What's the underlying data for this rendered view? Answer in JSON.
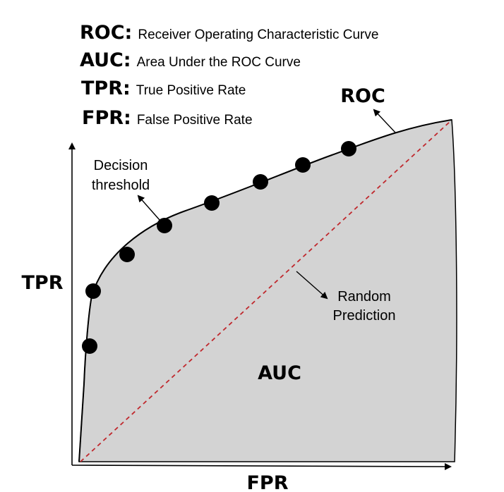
{
  "definitions": [
    {
      "term": "ROC:",
      "description": "Receiver Operating Characteristic Curve"
    },
    {
      "term": "AUC:",
      "description": "Area Under the ROC Curve"
    },
    {
      "term": "TPR:",
      "description": "True Positive Rate"
    },
    {
      "term": "FPR:",
      "description": "False Positive Rate"
    }
  ],
  "labels": {
    "roc": "ROC",
    "auc": "AUC",
    "tpr": "TPR",
    "fpr": "FPR",
    "decision_threshold": [
      "Decision",
      "threshold"
    ],
    "random_prediction": [
      "Random",
      "Prediction"
    ]
  },
  "colors": {
    "area_fill": "#d3d3d3",
    "curve": "#000000",
    "diagonal": "#c0282d",
    "points": "#000000"
  }
}
